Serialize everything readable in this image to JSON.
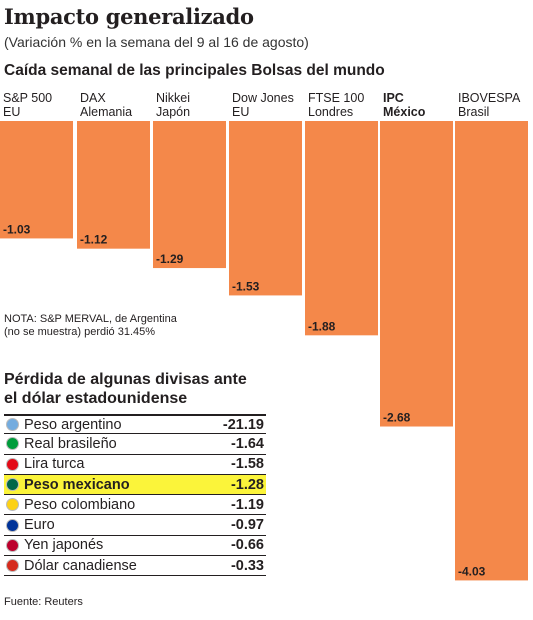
{
  "title": "Impacto generalizado",
  "subtitle": "(Variación % en la semana del 9 al 16 de agosto)",
  "chart_heading": "Caída semanal de las principales Bolsas del mundo",
  "chart_data": {
    "type": "bar",
    "orientation": "downward",
    "categories": [
      {
        "line1": "S&P 500",
        "line2": "EU",
        "bold": false
      },
      {
        "line1": "DAX",
        "line2": "Alemania",
        "bold": false
      },
      {
        "line1": "Nikkei",
        "line2": "Japón",
        "bold": false
      },
      {
        "line1": "Dow Jones",
        "line2": "EU",
        "bold": false
      },
      {
        "line1": "FTSE 100",
        "line2": "Londres",
        "bold": false
      },
      {
        "line1": "IPC",
        "line2": "México",
        "bold": true
      },
      {
        "line1": "IBOVESPA",
        "line2": "Brasil",
        "bold": false
      }
    ],
    "values": [
      -1.03,
      -1.12,
      -1.29,
      -1.53,
      -1.88,
      -2.68,
      -4.03
    ],
    "value_labels": [
      "-1.03",
      "-1.12",
      "-1.29",
      "-1.53",
      "-1.88",
      "-2.68",
      "-4.03"
    ],
    "bar_color": "#f4884a"
  },
  "note": {
    "line1": "NOTA: S&P MERVAL, de Argentina",
    "line2": "(no se muestra) perdió 31.45%"
  },
  "currency_heading": {
    "line1": "Pérdida de algunas divisas ante",
    "line2": "el dólar estadounidense"
  },
  "currencies": [
    {
      "name": "Peso argentino",
      "value": "-21.19",
      "flag_icon": "argentina-flag-icon",
      "flag_color": "#74acdf"
    },
    {
      "name": "Real brasileño",
      "value": "-1.64",
      "flag_icon": "brazil-flag-icon",
      "flag_color": "#009c3b"
    },
    {
      "name": "Lira turca",
      "value": "-1.58",
      "flag_icon": "turkey-flag-icon",
      "flag_color": "#e30a17"
    },
    {
      "name": "Peso mexicano",
      "value": "-1.28",
      "flag_icon": "mexico-flag-icon",
      "flag_color": "#006847",
      "highlight": true,
      "highlight_color": "#fbf43a"
    },
    {
      "name": "Peso colombiano",
      "value": "-1.19",
      "flag_icon": "colombia-flag-icon",
      "flag_color": "#fcd116"
    },
    {
      "name": "Euro",
      "value": "-0.97",
      "flag_icon": "eu-flag-icon",
      "flag_color": "#003399"
    },
    {
      "name": "Yen japonés",
      "value": "-0.66",
      "flag_icon": "japan-flag-icon",
      "flag_color": "#bc002d"
    },
    {
      "name": "Dólar canadiense",
      "value": "-0.33",
      "flag_icon": "canada-flag-icon",
      "flag_color": "#d52b1e"
    }
  ],
  "source": "Fuente: Reuters"
}
